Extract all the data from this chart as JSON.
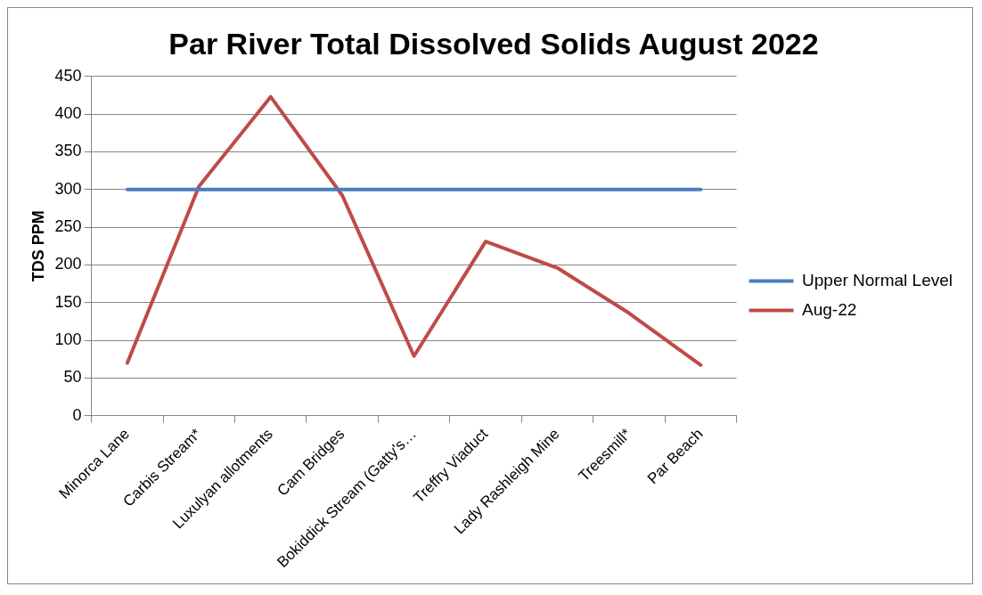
{
  "chart_data": {
    "type": "line",
    "title": "Par River Total Dissolved Solids August 2022",
    "ylabel": "TDS PPM",
    "categories": [
      "Minorca Lane",
      "Carbis Stream*",
      "Luxulyan allotments",
      "Cam Bridges",
      "Bokiddick Stream (Gatty's…",
      "Treffry Viaduct",
      "Lady Rashleigh Mine",
      "Treesmill*",
      "Par Beach"
    ],
    "series": [
      {
        "name": "Upper Normal Level",
        "color": "#4a7ebb",
        "values": [
          300,
          300,
          300,
          300,
          300,
          300,
          300,
          300,
          300
        ]
      },
      {
        "name": "Aug-22",
        "color": "#be4b48",
        "values": [
          70,
          304,
          423,
          292,
          79,
          231,
          196,
          136,
          67
        ]
      }
    ],
    "ylim": [
      0,
      450
    ],
    "yticks": [
      0,
      50,
      100,
      150,
      200,
      250,
      300,
      350,
      400,
      450
    ],
    "grid": "y",
    "legend": "right",
    "marker": "none",
    "line_style": "solid"
  }
}
